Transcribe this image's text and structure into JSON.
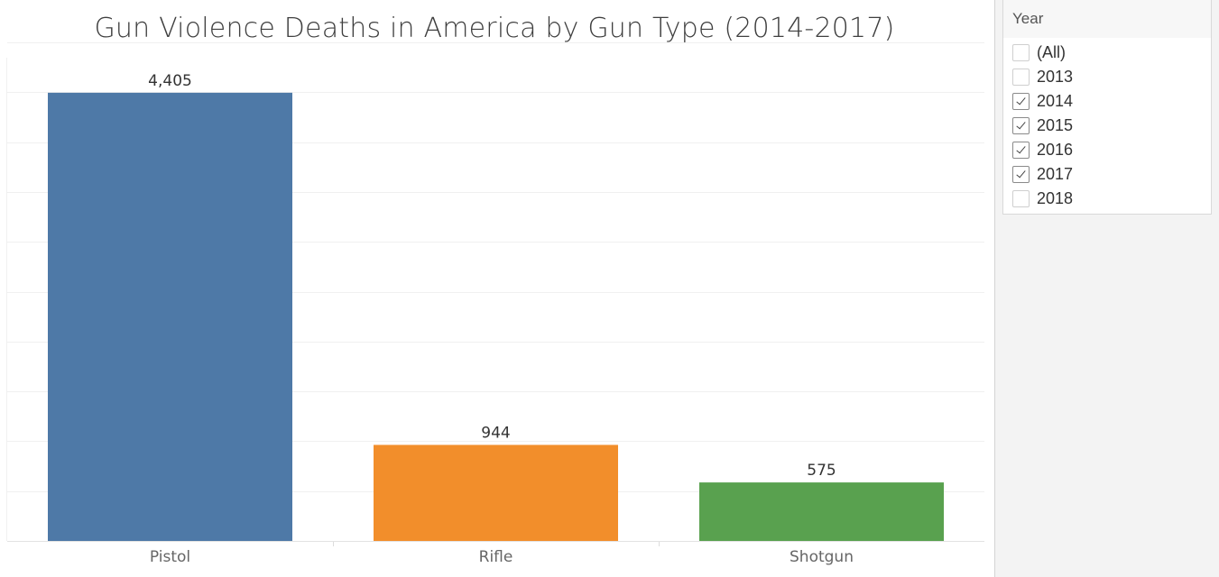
{
  "chart_data": {
    "type": "bar",
    "title": "Gun Violence Deaths in America by Gun Type (2014-2017)",
    "categories": [
      "Pistol",
      "Rifle",
      "Shotgun"
    ],
    "values": [
      4405,
      944,
      575
    ],
    "value_labels": [
      "4,405",
      "944",
      "575"
    ],
    "colors": [
      "#4e79a7",
      "#f28e2b",
      "#59a14f"
    ],
    "xlabel": "",
    "ylabel": "",
    "ylim": [
      0,
      4900
    ],
    "grid": true,
    "legend": "none"
  },
  "filter": {
    "title": "Year",
    "items": [
      {
        "label": "(All)",
        "checked": false
      },
      {
        "label": "2013",
        "checked": false
      },
      {
        "label": "2014",
        "checked": true
      },
      {
        "label": "2015",
        "checked": true
      },
      {
        "label": "2016",
        "checked": true
      },
      {
        "label": "2017",
        "checked": true
      },
      {
        "label": "2018",
        "checked": false
      }
    ]
  }
}
